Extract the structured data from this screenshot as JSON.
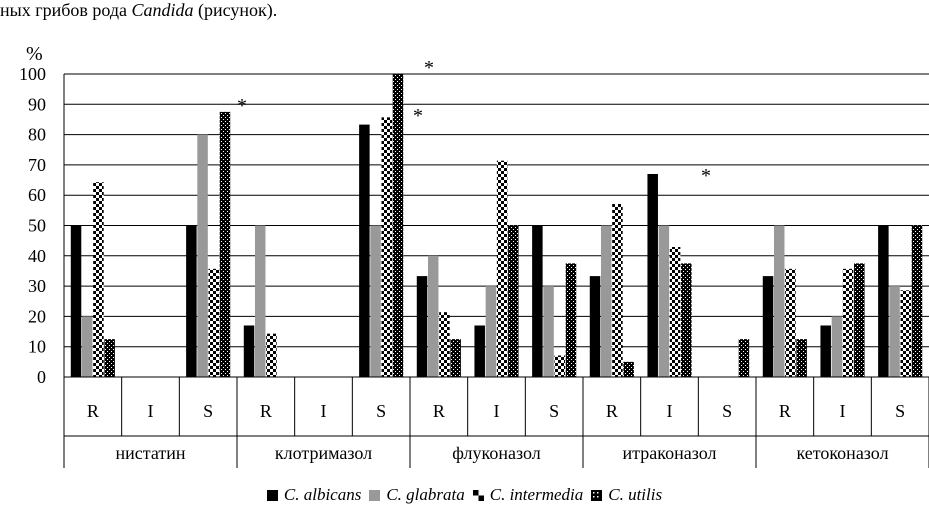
{
  "caption": {
    "pre": "ных грибов рода ",
    "italic": "Candida",
    "post": " (рисунок)."
  },
  "colors": {
    "albicans": "#000000",
    "glabrata": "#999999",
    "grid": "#000000"
  },
  "chart_data": {
    "type": "bar",
    "ylabel": "%",
    "ylim": [
      0,
      100
    ],
    "yticks": [
      0,
      10,
      20,
      30,
      40,
      50,
      60,
      70,
      80,
      90,
      100
    ],
    "grid": true,
    "legend_position": "bottom",
    "groups": [
      "нистатин",
      "клотримазол",
      "флуконазол",
      "итраконазол",
      "кетоконазол"
    ],
    "categories": [
      "R",
      "I",
      "S"
    ],
    "series": [
      {
        "name": "C. albicans",
        "pattern": "solid-black",
        "values": [
          [
            50,
            0,
            50
          ],
          [
            17,
            0,
            83.3
          ],
          [
            33.3,
            17,
            50
          ],
          [
            33.3,
            67,
            0
          ],
          [
            33.3,
            17,
            50
          ]
        ]
      },
      {
        "name": "C. glabrata",
        "pattern": "solid-gray",
        "values": [
          [
            20,
            0,
            80
          ],
          [
            50,
            0,
            50
          ],
          [
            40,
            30,
            30
          ],
          [
            50,
            50,
            0
          ],
          [
            50,
            20,
            30
          ]
        ]
      },
      {
        "name": "C. intermedia",
        "pattern": "checker",
        "values": [
          [
            64.3,
            0,
            35.7
          ],
          [
            14.3,
            0,
            85.7
          ],
          [
            21.4,
            71.4,
            7.1
          ],
          [
            57.1,
            42.9,
            0
          ],
          [
            35.7,
            35.7,
            28.6
          ]
        ]
      },
      {
        "name": "C. utilis",
        "pattern": "dark-dots",
        "values": [
          [
            12.5,
            0,
            87.5
          ],
          [
            0,
            0,
            100
          ],
          [
            12.5,
            50,
            37.5
          ],
          [
            5,
            37.5,
            12.5
          ],
          [
            12.5,
            37.5,
            50
          ]
        ]
      }
    ],
    "annotations": [
      "*",
      "*",
      "*",
      "*"
    ]
  }
}
